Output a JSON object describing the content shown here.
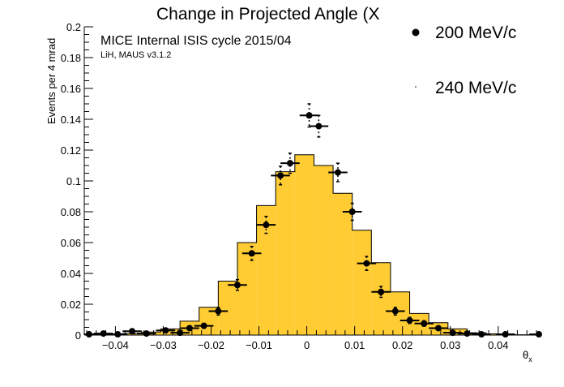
{
  "chart_data": {
    "type": "histogram-with-points",
    "title": "Change in Projected Angle (X",
    "xlabel": "θ",
    "xlabel_subscript": "x",
    "ylabel": "Events per 4 mrad",
    "annotations": [
      "MICE Internal ISIS cycle 2015/04",
      "LiH, MAUS v3.1.2"
    ],
    "xlim": [
      -0.0465,
      0.0485
    ],
    "ylim": [
      0,
      0.2
    ],
    "x_ticks": [
      -0.04,
      -0.03,
      -0.02,
      -0.01,
      0,
      0.01,
      0.02,
      0.03,
      0.04
    ],
    "x_tick_labels": [
      "−0.04",
      "−0.03",
      "−0.02",
      "−0.01",
      "0",
      "0.01",
      "0.02",
      "0.03",
      "0.04"
    ],
    "y_ticks": [
      0,
      0.02,
      0.04,
      0.06,
      0.08,
      0.1,
      0.12,
      0.14,
      0.16,
      0.18,
      0.2
    ],
    "y_tick_labels": [
      "0",
      "0.02",
      "0.04",
      "0.06",
      "0.08",
      "0.1",
      "0.12",
      "0.14",
      "0.16",
      "0.18",
      "0.2"
    ],
    "bin_width": 0.004,
    "colors": {
      "histogram_fill": "#ffcc33",
      "histogram_line": "#000000",
      "points": "#000000"
    },
    "legend": [
      {
        "label": "200 MeV/c",
        "marker": "filled-circle"
      },
      {
        "label": "240 MeV/c",
        "marker": "dot"
      }
    ],
    "histogram": {
      "bin_edges": [
        -0.0465,
        -0.0425,
        -0.0385,
        -0.0345,
        -0.0305,
        -0.0265,
        -0.0225,
        -0.0185,
        -0.0145,
        -0.0105,
        -0.0065,
        -0.0025,
        0.0015,
        0.0055,
        0.0095,
        0.0135,
        0.0175,
        0.0215,
        0.0255,
        0.0295,
        0.0335,
        0.0375,
        0.0415,
        0.0485
      ],
      "values": [
        0.0002,
        0.0005,
        0.001,
        0.002,
        0.004,
        0.009,
        0.018,
        0.035,
        0.06,
        0.084,
        0.106,
        0.117,
        0.11,
        0.092,
        0.068,
        0.047,
        0.028,
        0.014,
        0.008,
        0.004,
        0.0015,
        0.0008,
        0.0002
      ]
    },
    "points": {
      "x": [
        -0.0455,
        -0.0425,
        -0.0395,
        -0.0365,
        -0.0335,
        -0.0295,
        -0.0265,
        -0.0245,
        -0.0215,
        -0.0185,
        -0.0145,
        -0.0115,
        -0.0085,
        -0.0055,
        -0.0035,
        0.0005,
        0.0025,
        0.0065,
        0.0095,
        0.0125,
        0.0155,
        0.0185,
        0.0215,
        0.0245,
        0.0275,
        0.0305,
        0.0335,
        0.0365,
        0.0415,
        0.0485
      ],
      "y": [
        0.0005,
        0.001,
        0.0005,
        0.0025,
        0.001,
        0.003,
        0.0015,
        0.0045,
        0.006,
        0.0155,
        0.0325,
        0.053,
        0.0715,
        0.1035,
        0.1115,
        0.1425,
        0.1355,
        0.1055,
        0.08,
        0.0465,
        0.028,
        0.0155,
        0.0095,
        0.0075,
        0.0045,
        0.0015,
        0.001,
        0.0005,
        0.0005,
        0.0005
      ],
      "y_err": [
        0.0005,
        0.0008,
        0.0005,
        0.0012,
        0.0008,
        0.0012,
        0.001,
        0.0014,
        0.0016,
        0.0025,
        0.0035,
        0.0045,
        0.0055,
        0.006,
        0.0065,
        0.0075,
        0.007,
        0.006,
        0.0055,
        0.0045,
        0.0035,
        0.0025,
        0.002,
        0.0018,
        0.0014,
        0.0008,
        0.0006,
        0.0005,
        0.0005,
        0.0005
      ],
      "x_err": 0.002
    }
  }
}
